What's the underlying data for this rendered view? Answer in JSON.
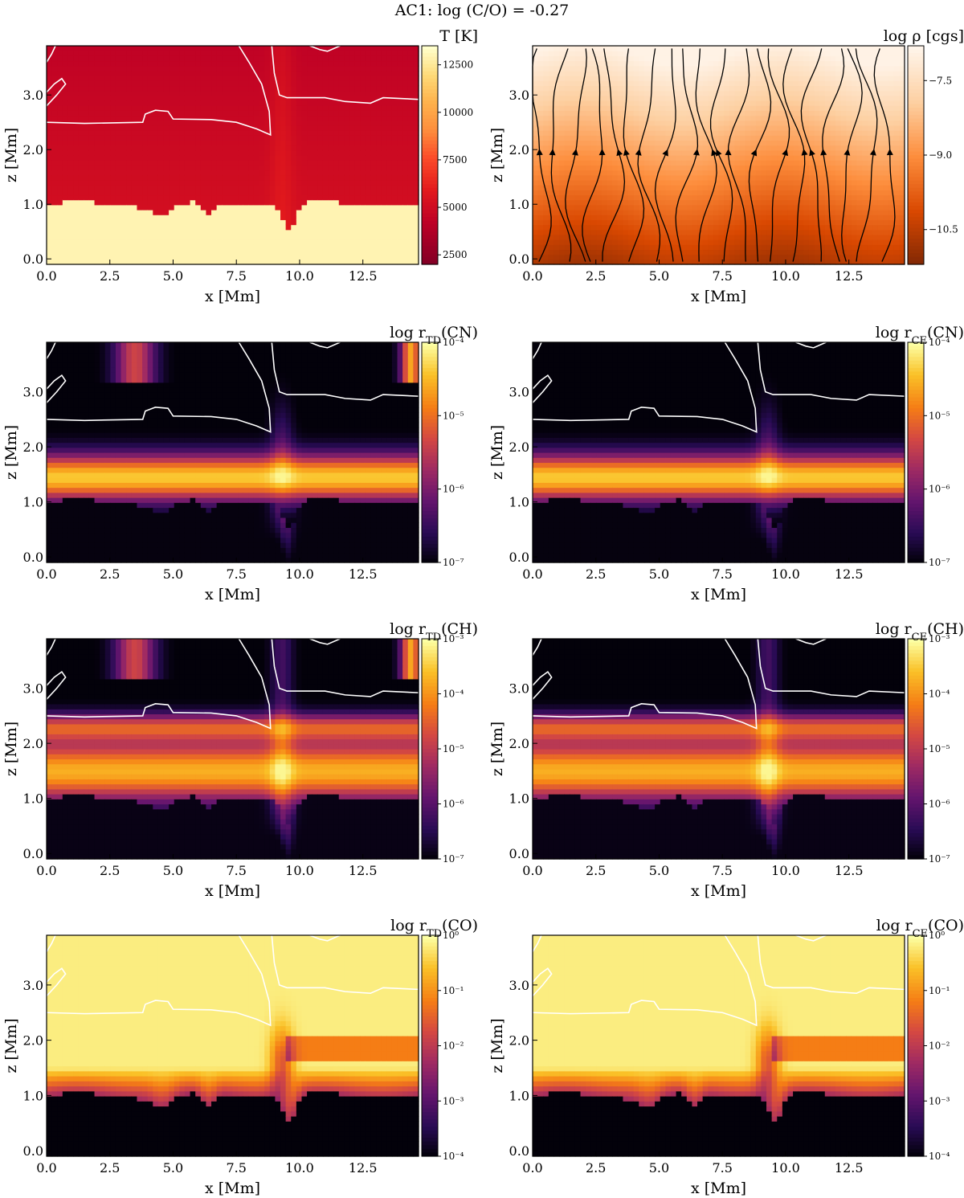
{
  "figure": {
    "title": "AC1: log (C/O) = -0.27"
  },
  "chart_data": [
    {
      "type": "heatmap",
      "id": "temperature",
      "title": "T [K]",
      "xlabel": "x [Mm]",
      "ylabel": "z [Mm]",
      "xlim": [
        0,
        14.7
      ],
      "ylim": [
        -0.1,
        3.9
      ],
      "xticks": [
        "0.0",
        "2.5",
        "5.0",
        "7.5",
        "10.0",
        "12.5"
      ],
      "yticks": [
        "0.0",
        "1.0",
        "2.0",
        "3.0"
      ],
      "colormap": "YlOrRd_r",
      "colorbar": {
        "scale": "linear",
        "range": [
          2000,
          13500
        ],
        "ticks": [
          "2500",
          "5000",
          "7500",
          "10000",
          "12500"
        ]
      },
      "contours": true,
      "field": "temperature"
    },
    {
      "type": "heatmap",
      "id": "density",
      "title": "log ρ [cgs]",
      "xlabel": "x [Mm]",
      "ylabel": "z [Mm]",
      "xlim": [
        0,
        14.7
      ],
      "ylim": [
        -0.1,
        3.9
      ],
      "xticks": [
        "0.0",
        "2.5",
        "5.0",
        "7.5",
        "10.0",
        "12.5"
      ],
      "yticks": [
        "0.0",
        "1.0",
        "2.0",
        "3.0"
      ],
      "colormap": "Oranges",
      "colorbar": {
        "scale": "linear",
        "range": [
          -11.2,
          -6.8
        ],
        "ticks": [
          "−7.5",
          "−9.0",
          "−10.5"
        ],
        "inverted": true
      },
      "streamlines": true,
      "field": "density"
    },
    {
      "type": "heatmap",
      "id": "td-cn",
      "title": "log r_TD(CN)",
      "xlabel": "x [Mm]",
      "ylabel": "z [Mm]",
      "xlim": [
        0,
        14.7
      ],
      "ylim": [
        -0.1,
        3.9
      ],
      "xticks": [
        "0.0",
        "2.5",
        "5.0",
        "7.5",
        "10.0",
        "12.5"
      ],
      "yticks": [
        "0.0",
        "1.0",
        "2.0",
        "3.0"
      ],
      "colormap": "inferno",
      "colorbar": {
        "scale": "log",
        "range": [
          -7,
          -4
        ],
        "ticks": [
          "10⁻⁴",
          "10⁻⁵",
          "10⁻⁶",
          "10⁻⁷"
        ]
      },
      "contours": true,
      "field": "cn_td"
    },
    {
      "type": "heatmap",
      "id": "ce-cn",
      "title": "log r_CE(CN)",
      "xlabel": "x [Mm]",
      "ylabel": "z [Mm]",
      "xlim": [
        0,
        14.7
      ],
      "ylim": [
        -0.1,
        3.9
      ],
      "xticks": [
        "0.0",
        "2.5",
        "5.0",
        "7.5",
        "10.0",
        "12.5"
      ],
      "yticks": [
        "0.0",
        "1.0",
        "2.0",
        "3.0"
      ],
      "colormap": "inferno",
      "colorbar": {
        "scale": "log",
        "range": [
          -7,
          -4
        ],
        "ticks": [
          "10⁻⁴",
          "10⁻⁵",
          "10⁻⁶",
          "10⁻⁷"
        ]
      },
      "contours": true,
      "field": "cn_ce"
    },
    {
      "type": "heatmap",
      "id": "td-ch",
      "title": "log r_TD(CH)",
      "xlabel": "x [Mm]",
      "ylabel": "z [Mm]",
      "xlim": [
        0,
        14.7
      ],
      "ylim": [
        -0.1,
        3.9
      ],
      "xticks": [
        "0.0",
        "2.5",
        "5.0",
        "7.5",
        "10.0",
        "12.5"
      ],
      "yticks": [
        "0.0",
        "1.0",
        "2.0",
        "3.0"
      ],
      "colormap": "inferno",
      "colorbar": {
        "scale": "log",
        "range": [
          -7,
          -3
        ],
        "ticks": [
          "10⁻³",
          "10⁻⁴",
          "10⁻⁵",
          "10⁻⁶",
          "10⁻⁷"
        ]
      },
      "contours": true,
      "field": "ch_td"
    },
    {
      "type": "heatmap",
      "id": "ce-ch",
      "title": "log r_CE(CH)",
      "xlabel": "x [Mm]",
      "ylabel": "z [Mm]",
      "xlim": [
        0,
        14.7
      ],
      "ylim": [
        -0.1,
        3.9
      ],
      "xticks": [
        "0.0",
        "2.5",
        "5.0",
        "7.5",
        "10.0",
        "12.5"
      ],
      "yticks": [
        "0.0",
        "1.0",
        "2.0",
        "3.0"
      ],
      "colormap": "inferno",
      "colorbar": {
        "scale": "log",
        "range": [
          -7,
          -3
        ],
        "ticks": [
          "10⁻³",
          "10⁻⁴",
          "10⁻⁵",
          "10⁻⁶",
          "10⁻⁷"
        ]
      },
      "contours": true,
      "field": "ch_ce"
    },
    {
      "type": "heatmap",
      "id": "td-co",
      "title": "log r_TD(CO)",
      "xlabel": "x [Mm]",
      "ylabel": "z [Mm]",
      "xlim": [
        0,
        14.7
      ],
      "ylim": [
        -0.1,
        3.9
      ],
      "xticks": [
        "0.0",
        "2.5",
        "5.0",
        "7.5",
        "10.0",
        "12.5"
      ],
      "yticks": [
        "0.0",
        "1.0",
        "2.0",
        "3.0"
      ],
      "colormap": "inferno",
      "colorbar": {
        "scale": "log",
        "range": [
          -4,
          0
        ],
        "ticks": [
          "10⁰",
          "10⁻¹",
          "10⁻²",
          "10⁻³",
          "10⁻⁴"
        ]
      },
      "contours": true,
      "field": "co_td"
    },
    {
      "type": "heatmap",
      "id": "ce-co",
      "title": "log r_CE(CO)",
      "xlabel": "x [Mm]",
      "ylabel": "z [Mm]",
      "xlim": [
        0,
        14.7
      ],
      "ylim": [
        -0.1,
        3.9
      ],
      "xticks": [
        "0.0",
        "2.5",
        "5.0",
        "7.5",
        "10.0",
        "12.5"
      ],
      "yticks": [
        "0.0",
        "1.0",
        "2.0",
        "3.0"
      ],
      "colormap": "inferno",
      "colorbar": {
        "scale": "log",
        "range": [
          -4,
          0
        ],
        "ticks": [
          "10⁰",
          "10⁻¹",
          "10⁻²",
          "10⁻³",
          "10⁻⁴"
        ]
      },
      "contours": true,
      "field": "co_ce"
    }
  ]
}
